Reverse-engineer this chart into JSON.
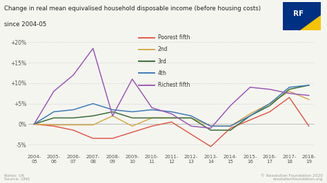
{
  "title_line1": "Change in real mean equivalised household disposable income (before housing costs)",
  "title_line2": "since 2004-05",
  "xlabels": [
    "2004-\n05",
    "2005-\n06",
    "2006-\n07",
    "2007-\n08",
    "2008-\n09",
    "2009-\n10",
    "2010-\n11",
    "2011-\n12",
    "2012-\n13",
    "2013-\n14",
    "2014-\n15",
    "2015-\n16",
    "2016-\n17",
    "2017-\n18",
    "2018-\n19"
  ],
  "series": [
    {
      "name": "Poorest fifth",
      "color": "#e05b4b",
      "data": [
        0,
        -0.5,
        -1.5,
        -3.5,
        -3.5,
        -2.0,
        -0.5,
        0.5,
        -2.5,
        -5.5,
        -1.0,
        1.0,
        3.0,
        6.5,
        -0.5
      ]
    },
    {
      "name": "2nd",
      "color": "#d4a84b",
      "data": [
        0,
        -0.2,
        -0.2,
        -0.2,
        2.0,
        -0.5,
        1.5,
        1.5,
        1.5,
        -0.5,
        -0.5,
        2.5,
        5.0,
        8.0,
        6.0
      ]
    },
    {
      "name": "3rd",
      "color": "#3a6b35",
      "data": [
        0,
        1.5,
        1.5,
        2.0,
        3.0,
        1.5,
        1.5,
        1.5,
        1.5,
        -1.5,
        -1.5,
        2.0,
        4.5,
        8.5,
        9.5
      ]
    },
    {
      "name": "4th",
      "color": "#3d7ab5",
      "data": [
        0,
        3.0,
        3.5,
        5.0,
        3.5,
        3.0,
        3.5,
        3.0,
        2.0,
        -0.5,
        -0.5,
        2.0,
        5.0,
        9.0,
        9.5
      ]
    },
    {
      "name": "Richest fifth",
      "color": "#9b59b6",
      "data": [
        0,
        8.0,
        12.0,
        18.5,
        2.0,
        11.0,
        4.0,
        2.5,
        -0.5,
        -1.0,
        4.5,
        9.0,
        8.5,
        7.5,
        7.0
      ]
    }
  ],
  "ylim": [
    -7,
    22
  ],
  "yticks": [
    -5,
    0,
    5,
    10,
    15,
    20
  ],
  "ytick_labels": [
    "-5%",
    "0%",
    "+5%",
    "+10%",
    "+15%",
    "+20%"
  ],
  "notes": "Notes: UK\nSource: ONS",
  "copyright": "© Resolution Foundation 2020\nresolutionfoundation.org",
  "bg_color": "#f5f5f0",
  "grid_color": "#c8c8c8",
  "logo_colors": {
    "blue": "#003082",
    "yellow": "#f5c400"
  }
}
